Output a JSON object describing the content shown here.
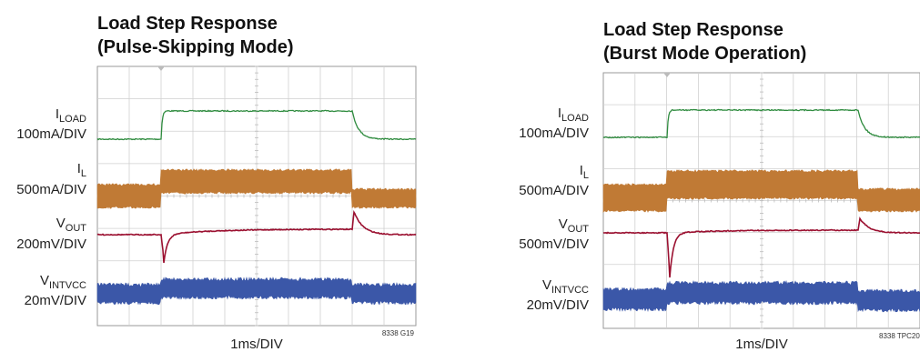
{
  "panels": [
    {
      "title": [
        "Load Step Response",
        "(Pulse-Skipping Mode)"
      ],
      "channels": [
        {
          "symbol": "I",
          "sub": "LOAD",
          "scale": "100mA/DIV"
        },
        {
          "symbol": "I",
          "sub": "L",
          "scale": "500mA/DIV"
        },
        {
          "symbol": "V",
          "sub": "OUT",
          "scale": "200mV/DIV"
        },
        {
          "symbol": "V",
          "sub": "INTVCC",
          "scale": "20mV/DIV"
        }
      ],
      "xlabel": "1ms/DIV",
      "code": "8338 G19"
    },
    {
      "title": [
        "Load Step Response",
        "(Burst Mode Operation)"
      ],
      "channels": [
        {
          "symbol": "I",
          "sub": "LOAD",
          "scale": "100mA/DIV"
        },
        {
          "symbol": "I",
          "sub": "L",
          "scale": "500mA/DIV"
        },
        {
          "symbol": "V",
          "sub": "OUT",
          "scale": "500mV/DIV"
        },
        {
          "symbol": "V",
          "sub": "INTVCC",
          "scale": "20mV/DIV"
        }
      ],
      "xlabel": "1ms/DIV",
      "code": "8338 TPC20"
    }
  ]
}
